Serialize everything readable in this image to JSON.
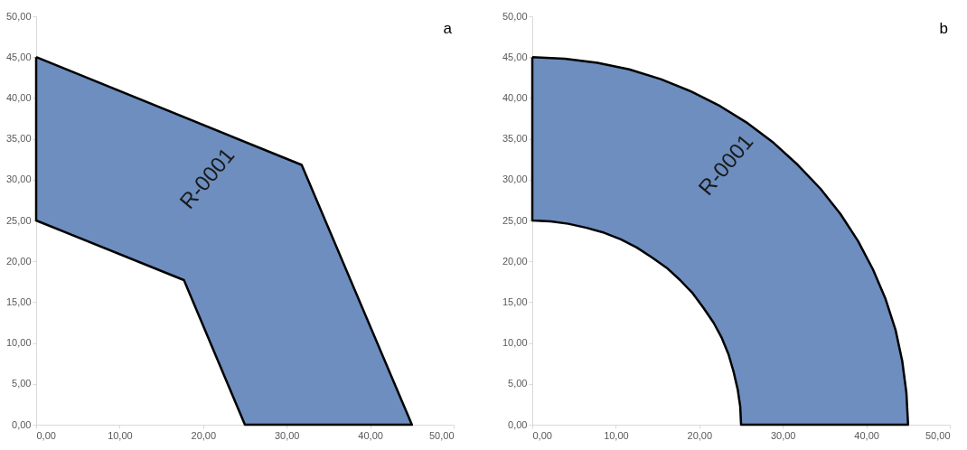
{
  "chart_data": [
    {
      "type": "area",
      "marker": "none",
      "grid": false,
      "xlim": [
        0,
        50
      ],
      "xticks": [
        {
          "value": 0,
          "label": "0,00"
        },
        {
          "value": 10,
          "label": "10,00"
        },
        {
          "value": 20,
          "label": "20,00"
        },
        {
          "value": 30,
          "label": "30,00"
        },
        {
          "value": 40,
          "label": "40,00"
        },
        {
          "value": 50,
          "label": "50,00"
        }
      ],
      "ylim": [
        0,
        50
      ],
      "yticks": [
        {
          "value": 0,
          "label": "0,00"
        },
        {
          "value": 5,
          "label": "5,00"
        },
        {
          "value": 10,
          "label": "10,00"
        },
        {
          "value": 15,
          "label": "15,00"
        },
        {
          "value": 20,
          "label": "20,00"
        },
        {
          "value": 25,
          "label": "25,00"
        },
        {
          "value": 30,
          "label": "30,00"
        },
        {
          "value": 35,
          "label": "35,00"
        },
        {
          "value": 40,
          "label": "40,00"
        },
        {
          "value": 45,
          "label": "45,00"
        },
        {
          "value": 50,
          "label": "50,00"
        }
      ],
      "series": [
        {
          "color": "#6d8ebf",
          "x": [
            0,
            31.8,
            45,
            25,
            17.7,
            0,
            0
          ],
          "values": [
            45,
            31.8,
            0,
            0,
            17.7,
            25,
            45
          ]
        }
      ],
      "annotations": [
        "a",
        "R-0001"
      ]
    },
    {
      "type": "area",
      "marker": "none",
      "grid": false,
      "xlim": [
        0,
        50
      ],
      "xticks": [
        {
          "value": 0,
          "label": "0,00"
        },
        {
          "value": 10,
          "label": "10,00"
        },
        {
          "value": 20,
          "label": "20,00"
        },
        {
          "value": 30,
          "label": "30,00"
        },
        {
          "value": 40,
          "label": "40,00"
        },
        {
          "value": 50,
          "label": "50,00"
        }
      ],
      "ylim": [
        0,
        50
      ],
      "yticks": [
        {
          "value": 0,
          "label": "0,00"
        },
        {
          "value": 5,
          "label": "5,00"
        },
        {
          "value": 10,
          "label": "10,00"
        },
        {
          "value": 15,
          "label": "15,00"
        },
        {
          "value": 20,
          "label": "20,00"
        },
        {
          "value": 25,
          "label": "25,00"
        },
        {
          "value": 30,
          "label": "30,00"
        },
        {
          "value": 35,
          "label": "35,00"
        },
        {
          "value": 40,
          "label": "40,00"
        },
        {
          "value": 45,
          "label": "45,00"
        },
        {
          "value": 50,
          "label": "50,00"
        }
      ],
      "series": [
        {
          "color": "#6d8ebf",
          "x": [
            0,
            3.9,
            7.8,
            11.6,
            15.4,
            19.0,
            22.5,
            25.8,
            28.9,
            31.8,
            34.5,
            36.9,
            39.0,
            40.8,
            42.3,
            43.5,
            44.3,
            44.8,
            45,
            25,
            24.9,
            24.6,
            24.1,
            23.5,
            22.7,
            21.7,
            20.5,
            19.2,
            17.7,
            16.1,
            14.3,
            12.5,
            10.6,
            8.6,
            6.5,
            4.3,
            2.2,
            0,
            0
          ],
          "values": [
            45,
            44.8,
            44.3,
            43.5,
            42.3,
            40.8,
            39.0,
            36.9,
            34.5,
            31.8,
            28.9,
            25.8,
            22.5,
            19.0,
            15.4,
            11.6,
            7.8,
            3.9,
            0,
            0,
            2.2,
            4.3,
            6.5,
            8.6,
            10.6,
            12.5,
            14.3,
            16.1,
            17.7,
            19.2,
            20.5,
            21.7,
            22.7,
            23.5,
            24.1,
            24.6,
            24.9,
            25,
            45
          ]
        }
      ],
      "annotations": [
        "b",
        "R-0001"
      ]
    }
  ]
}
